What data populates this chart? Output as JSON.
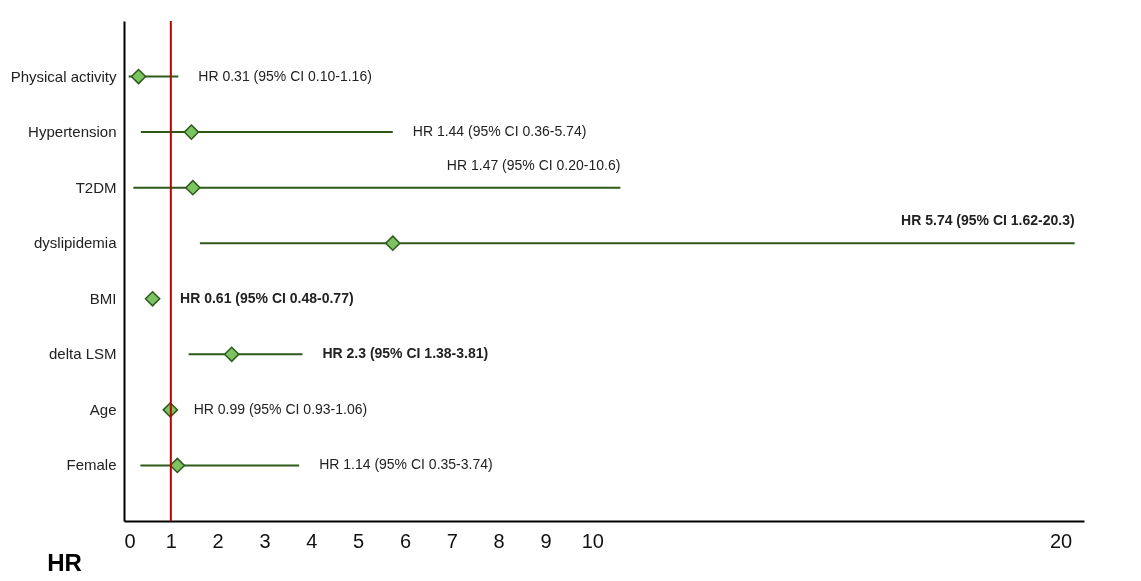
{
  "chart_data": {
    "type": "scatter",
    "xlabel": "HR",
    "categories": [
      "Physical activity",
      "Hypertension",
      "T2DM",
      "dyslipidemia",
      "BMI",
      "delta LSM",
      "Age",
      "Female"
    ],
    "values": [
      0.31,
      1.44,
      1.47,
      5.74,
      0.61,
      2.3,
      0.99,
      1.14
    ],
    "errors": [
      [
        0.1,
        1.16
      ],
      [
        0.36,
        5.74
      ],
      [
        0.2,
        10.6
      ],
      [
        1.62,
        20.3
      ],
      [
        0.48,
        0.77
      ],
      [
        1.38,
        3.81
      ],
      [
        0.93,
        1.06
      ],
      [
        0.35,
        3.74
      ]
    ],
    "annotations": [
      {
        "text": "HR 0.31 (95% CI 0.10-1.16)",
        "x": 1.16,
        "y": "Physical activity"
      },
      {
        "text": "HR 1.44 (95% CI 0.36-5.74)",
        "x": 5.74,
        "y": "Hypertension"
      },
      {
        "text": "HR 1.47 (95% CI 0.20-10.6)",
        "x": 10.6,
        "y": "T2DM"
      },
      {
        "text": "HR 5.74 (95% CI 1.62-20.3)",
        "x": 20.3,
        "y": "dyslipidemia"
      },
      {
        "text": "HR 0.61 (95% CI 0.48-0.77)",
        "x": 0.77,
        "y": "BMI"
      },
      {
        "text": "HR 2.3 (95% CI 1.38-3.81)",
        "x": 3.81,
        "y": "delta LSM"
      },
      {
        "text": "HR 0.99 (95% CI 0.93-1.06)",
        "x": 1.06,
        "y": "Age"
      },
      {
        "text": "HR 1.14 (95% CI 0.35-3.74)",
        "x": 3.74,
        "y": "Female"
      }
    ],
    "color": "#7cc462",
    "marker": "diamond",
    "xlim": [
      0,
      20.5
    ],
    "xticks": [
      0,
      1,
      2,
      3,
      4,
      5,
      6,
      7,
      8,
      9,
      10,
      20
    ],
    "ref_lines": [
      {
        "axis": "x",
        "value": 1,
        "color": "#c00000"
      }
    ],
    "orientation": "horizontal",
    "grid": false
  }
}
